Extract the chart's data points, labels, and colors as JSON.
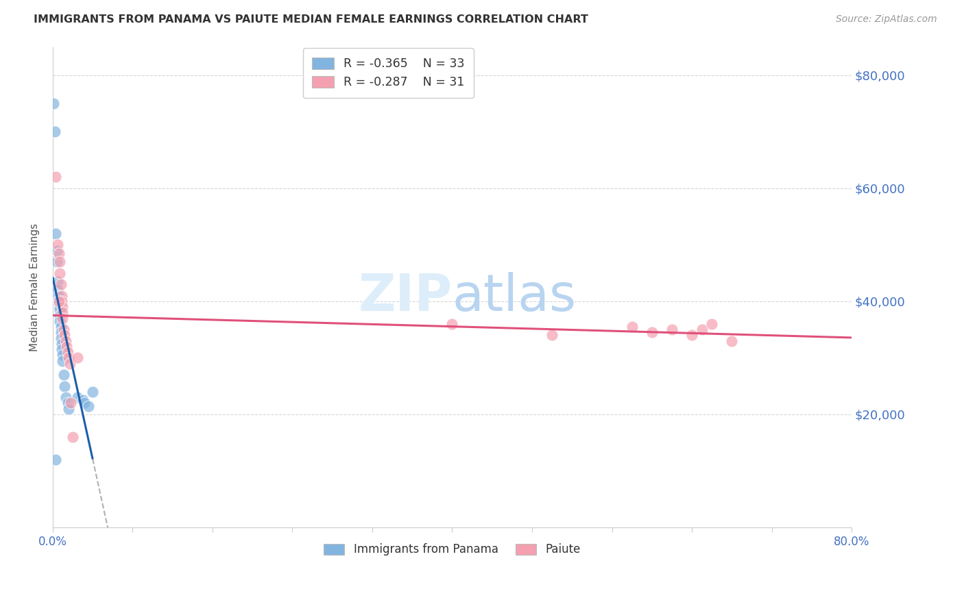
{
  "title": "IMMIGRANTS FROM PANAMA VS PAIUTE MEDIAN FEMALE EARNINGS CORRELATION CHART",
  "source": "Source: ZipAtlas.com",
  "ylabel": "Median Female Earnings",
  "y_ticks": [
    0,
    20000,
    40000,
    60000,
    80000
  ],
  "y_tick_labels": [
    "",
    "$20,000",
    "$40,000",
    "$60,000",
    "$80,000"
  ],
  "blue_color": "#82b4e0",
  "pink_color": "#f4a0b0",
  "blue_line_color": "#1a5fa8",
  "pink_line_color": "#e0507a",
  "axis_label_color": "#4472c4",
  "watermark_color": "#ddeefa",
  "blue_x": [
    0.001,
    0.002,
    0.003,
    0.004,
    0.004,
    0.005,
    0.005,
    0.005,
    0.006,
    0.006,
    0.006,
    0.007,
    0.007,
    0.007,
    0.007,
    0.008,
    0.008,
    0.008,
    0.009,
    0.009,
    0.01,
    0.01,
    0.011,
    0.012,
    0.013,
    0.015,
    0.016,
    0.025,
    0.03,
    0.032,
    0.036,
    0.04,
    0.003
  ],
  "blue_y": [
    75000,
    70000,
    52000,
    49000,
    47000,
    43500,
    42000,
    41000,
    40800,
    40200,
    39500,
    39000,
    38500,
    37500,
    36500,
    35500,
    34500,
    33500,
    32500,
    31500,
    30500,
    29500,
    27000,
    25000,
    23000,
    22000,
    21000,
    23000,
    22500,
    22000,
    21500,
    24000,
    12000
  ],
  "pink_x": [
    0.003,
    0.005,
    0.006,
    0.007,
    0.007,
    0.008,
    0.009,
    0.009,
    0.01,
    0.01,
    0.01,
    0.011,
    0.012,
    0.013,
    0.014,
    0.015,
    0.016,
    0.017,
    0.018,
    0.02,
    0.025,
    0.4,
    0.5,
    0.58,
    0.6,
    0.62,
    0.64,
    0.65,
    0.66,
    0.68,
    0.006
  ],
  "pink_y": [
    62000,
    50000,
    48500,
    47000,
    45000,
    43000,
    41000,
    40000,
    39000,
    38000,
    37000,
    35000,
    34000,
    33000,
    32000,
    31000,
    30000,
    29000,
    22000,
    16000,
    30000,
    36000,
    34000,
    35500,
    34500,
    35000,
    34000,
    35000,
    36000,
    33000,
    40000
  ],
  "xlim": [
    0.0,
    0.8
  ],
  "ylim": [
    0,
    85000
  ],
  "x_ticks_count": 11,
  "figsize": [
    14.06,
    8.92
  ],
  "dpi": 100,
  "legend1_label": "R = -0.365    N = 33",
  "legend2_label": "R = -0.287    N = 31",
  "legend_bottom_1": "Immigrants from Panama",
  "legend_bottom_2": "Paiute"
}
